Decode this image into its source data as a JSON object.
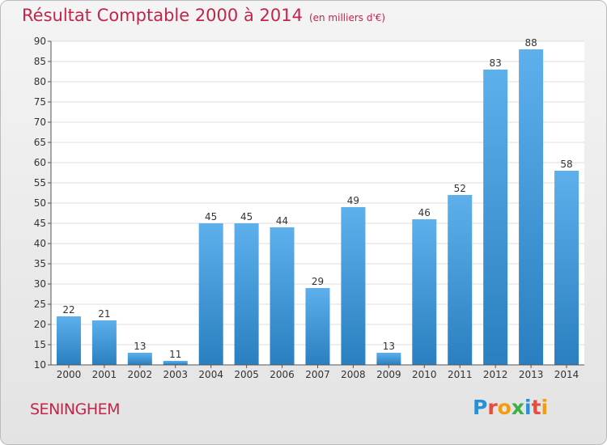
{
  "title": "Résultat Comptable 2000 à 2014",
  "unit_note": "(en milliers d'€)",
  "town": "SENINGHEM",
  "logo": {
    "text": "Proxiti",
    "letter_colors": [
      "#2b8fd4",
      "#e74c3c",
      "#f39c12",
      "#3cb043",
      "#2b8fd4",
      "#e74c3c",
      "#f39c12"
    ]
  },
  "chart_data": {
    "type": "bar",
    "categories": [
      "2000",
      "2001",
      "2002",
      "2003",
      "2004",
      "2005",
      "2006",
      "2007",
      "2008",
      "2009",
      "2010",
      "2011",
      "2012",
      "2013",
      "2014"
    ],
    "values": [
      22,
      21,
      13,
      11,
      45,
      45,
      44,
      29,
      49,
      13,
      46,
      52,
      83,
      88,
      58
    ],
    "yticks": [
      10,
      15,
      20,
      25,
      30,
      35,
      40,
      45,
      50,
      55,
      60,
      65,
      70,
      75,
      80,
      85,
      90
    ],
    "ylim": [
      10,
      90
    ],
    "grid": true,
    "bar_color": "#3f9ee0",
    "xlabel": "",
    "ylabel": ""
  }
}
